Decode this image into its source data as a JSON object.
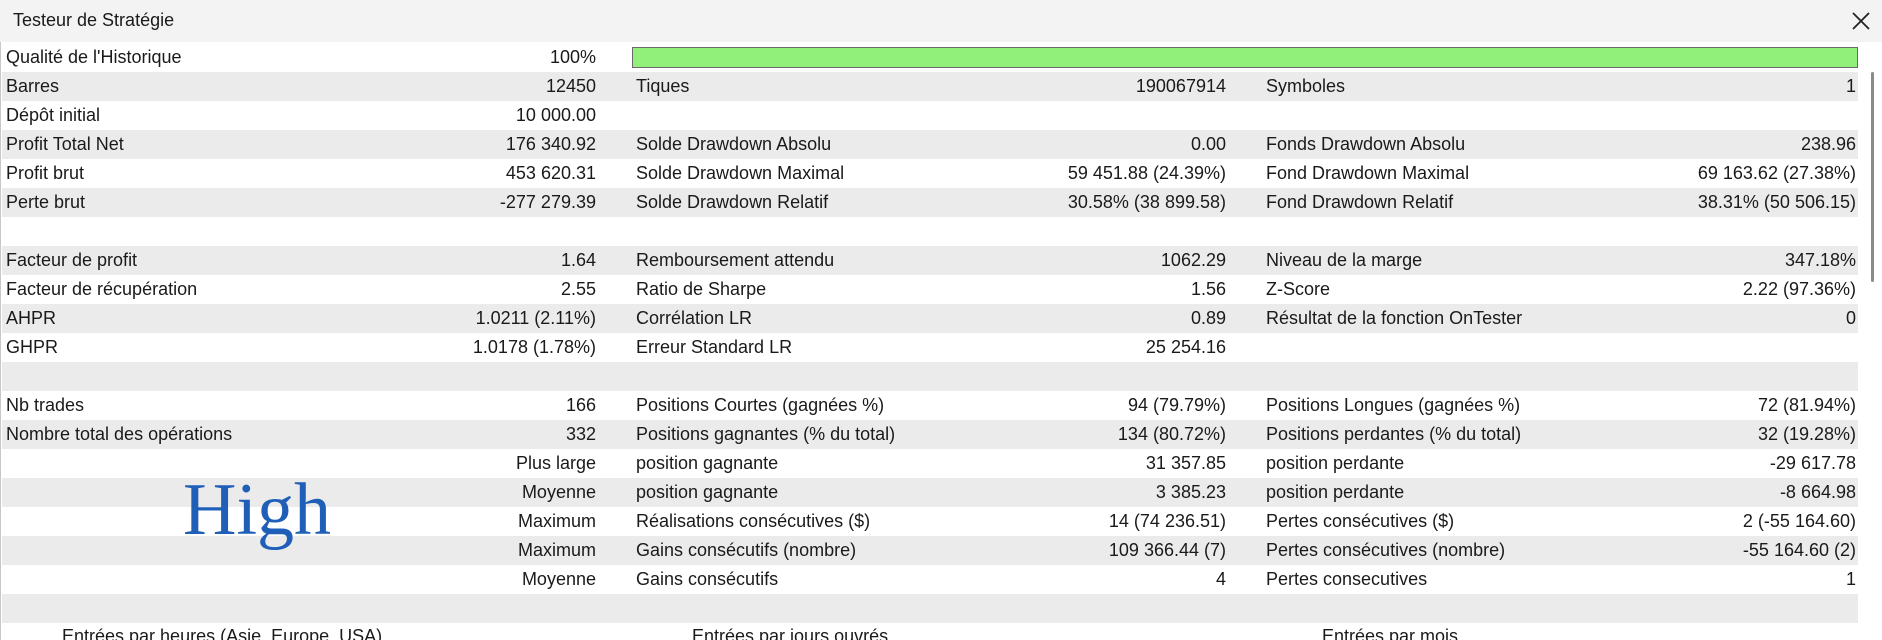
{
  "window_title": "Testeur de Stratégie",
  "rows": [
    {
      "col1": {
        "label": "Qualité de l'Historique",
        "value": "100%"
      }
    },
    {
      "col1": {
        "label": "Barres",
        "value": "12450"
      },
      "col2": {
        "label": "Tiques",
        "value": "190067914"
      },
      "col3": {
        "label": "Symboles",
        "value": "1"
      }
    },
    {
      "col1": {
        "label": "Dépôt initial",
        "value": "10 000.00"
      }
    },
    {
      "col1": {
        "label": "Profit Total Net",
        "value": "176 340.92"
      },
      "col2": {
        "label": "Solde Drawdown Absolu",
        "value": "0.00"
      },
      "col3": {
        "label": "Fonds Drawdown Absolu",
        "value": "238.96"
      }
    },
    {
      "col1": {
        "label": "Profit brut",
        "value": "453 620.31"
      },
      "col2": {
        "label": "Solde Drawdown Maximal",
        "value": "59 451.88 (24.39%)"
      },
      "col3": {
        "label": "Fond Drawdown Maximal",
        "value": "69 163.62 (27.38%)"
      }
    },
    {
      "col1": {
        "label": "Perte brut",
        "value": "-277 279.39"
      },
      "col2": {
        "label": "Solde Drawdown Relatif",
        "value": "30.58% (38 899.58)"
      },
      "col3": {
        "label": "Fond Drawdown Relatif",
        "value": "38.31% (50 506.15)"
      }
    },
    {},
    {
      "col1": {
        "label": "Facteur de profit",
        "value": "1.64"
      },
      "col2": {
        "label": "Remboursement attendu",
        "value": "1062.29"
      },
      "col3": {
        "label": "Niveau de la marge",
        "value": "347.18%"
      }
    },
    {
      "col1": {
        "label": "Facteur de récupération",
        "value": "2.55"
      },
      "col2": {
        "label": "Ratio de Sharpe",
        "value": "1.56"
      },
      "col3": {
        "label": "Z-Score",
        "value": "2.22 (97.36%)"
      }
    },
    {
      "col1": {
        "label": "AHPR",
        "value": "1.0211 (2.11%)"
      },
      "col2": {
        "label": "Corrélation LR",
        "value": "0.89"
      },
      "col3": {
        "label": "Résultat de la fonction OnTester",
        "value": "0"
      }
    },
    {
      "col1": {
        "label": "GHPR",
        "value": "1.0178 (1.78%)"
      },
      "col2": {
        "label": "Erreur Standard LR",
        "value": "25 254.16"
      }
    },
    {},
    {
      "col1": {
        "label": "Nb trades",
        "value": "166"
      },
      "col2": {
        "label": "Positions Courtes (gagnées %)",
        "value": "94 (79.79%)"
      },
      "col3": {
        "label": "Positions Longues (gagnées %)",
        "value": "72 (81.94%)"
      }
    },
    {
      "col1": {
        "label": "Nombre total des opérations",
        "value": "332"
      },
      "col2": {
        "label": "Positions gagnantes (% du total)",
        "value": "134 (80.72%)"
      },
      "col3": {
        "label": "Positions perdantes (% du total)",
        "value": "32 (19.28%)"
      }
    },
    {
      "col1": {
        "value": "Plus large"
      },
      "col2": {
        "label": "position gagnante",
        "value": "31 357.85"
      },
      "col3": {
        "label": "position perdante",
        "value": "-29 617.78"
      }
    },
    {
      "col1": {
        "value": "Moyenne"
      },
      "col2": {
        "label": "position gagnante",
        "value": "3 385.23"
      },
      "col3": {
        "label": "position perdante",
        "value": "-8 664.98"
      }
    },
    {
      "col1": {
        "value": "Maximum"
      },
      "col2": {
        "label": "Réalisations consécutives ($)",
        "value": "14 (74 236.51)"
      },
      "col3": {
        "label": "Pertes consécutives ($)",
        "value": "2 (-55 164.60)"
      }
    },
    {
      "col1": {
        "value": "Maximum"
      },
      "col2": {
        "label": "Gains consécutifs (nombre)",
        "value": "109 366.44 (7)"
      },
      "col3": {
        "label": "Pertes consécutives (nombre)",
        "value": "-55 164.60 (2)"
      }
    },
    {
      "col1": {
        "value": "Moyenne"
      },
      "col2": {
        "label": "Gains consécutifs",
        "value": "4"
      },
      "col3": {
        "label": "Pertes consecutives",
        "value": "1"
      }
    },
    {}
  ],
  "watermark": "High",
  "section_headers": [
    "Entrées par heures (Asie, Europe, USA)",
    "Entrées par jours ouvrés",
    "Entrées par mois"
  ]
}
